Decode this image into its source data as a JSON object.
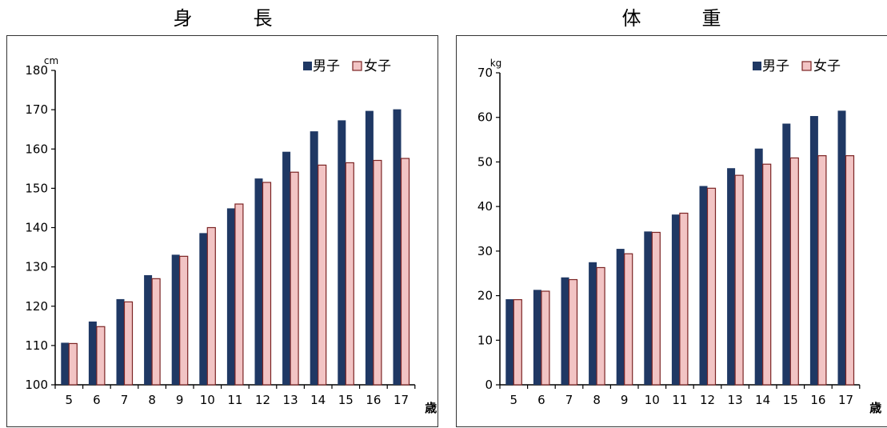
{
  "colors": {
    "male": "#1f3864",
    "female": "#f2c4c4",
    "female_border": "#7b2323"
  },
  "chart_data": [
    {
      "type": "bar",
      "title": "身　　　長",
      "ylabel": "cm",
      "xunit": "歳",
      "categories": [
        "5",
        "6",
        "7",
        "8",
        "9",
        "10",
        "11",
        "12",
        "13",
        "14",
        "15",
        "16",
        "17"
      ],
      "ylim": [
        100,
        180
      ],
      "yticks": [
        100,
        110,
        120,
        130,
        140,
        150,
        160,
        170,
        180
      ],
      "grid": false,
      "legend": "top-right",
      "series": [
        {
          "name": "男子",
          "values": [
            110.7,
            116.1,
            121.8,
            127.9,
            133.1,
            138.6,
            144.9,
            152.5,
            159.3,
            164.5,
            167.3,
            169.7,
            170.1
          ]
        },
        {
          "name": "女子",
          "values": [
            110.5,
            114.8,
            121.1,
            127.0,
            132.7,
            140.0,
            146.0,
            151.5,
            154.1,
            155.9,
            156.5,
            157.1,
            157.6
          ]
        }
      ]
    },
    {
      "type": "bar",
      "title": "体　　　重",
      "ylabel": "kg",
      "xunit": "歳",
      "categories": [
        "5",
        "6",
        "7",
        "8",
        "9",
        "10",
        "11",
        "12",
        "13",
        "14",
        "15",
        "16",
        "17"
      ],
      "ylim": [
        0,
        70
      ],
      "yticks": [
        0,
        10,
        20,
        30,
        40,
        50,
        60,
        70
      ],
      "grid": false,
      "legend": "top-right",
      "series": [
        {
          "name": "男子",
          "values": [
            19.2,
            21.3,
            24.1,
            27.5,
            30.5,
            34.4,
            38.2,
            44.6,
            48.6,
            53.0,
            58.6,
            60.3,
            61.5
          ]
        },
        {
          "name": "女子",
          "values": [
            19.1,
            21.0,
            23.6,
            26.3,
            29.4,
            34.2,
            38.5,
            44.1,
            47.0,
            49.5,
            50.9,
            51.4,
            51.4
          ]
        }
      ]
    }
  ]
}
